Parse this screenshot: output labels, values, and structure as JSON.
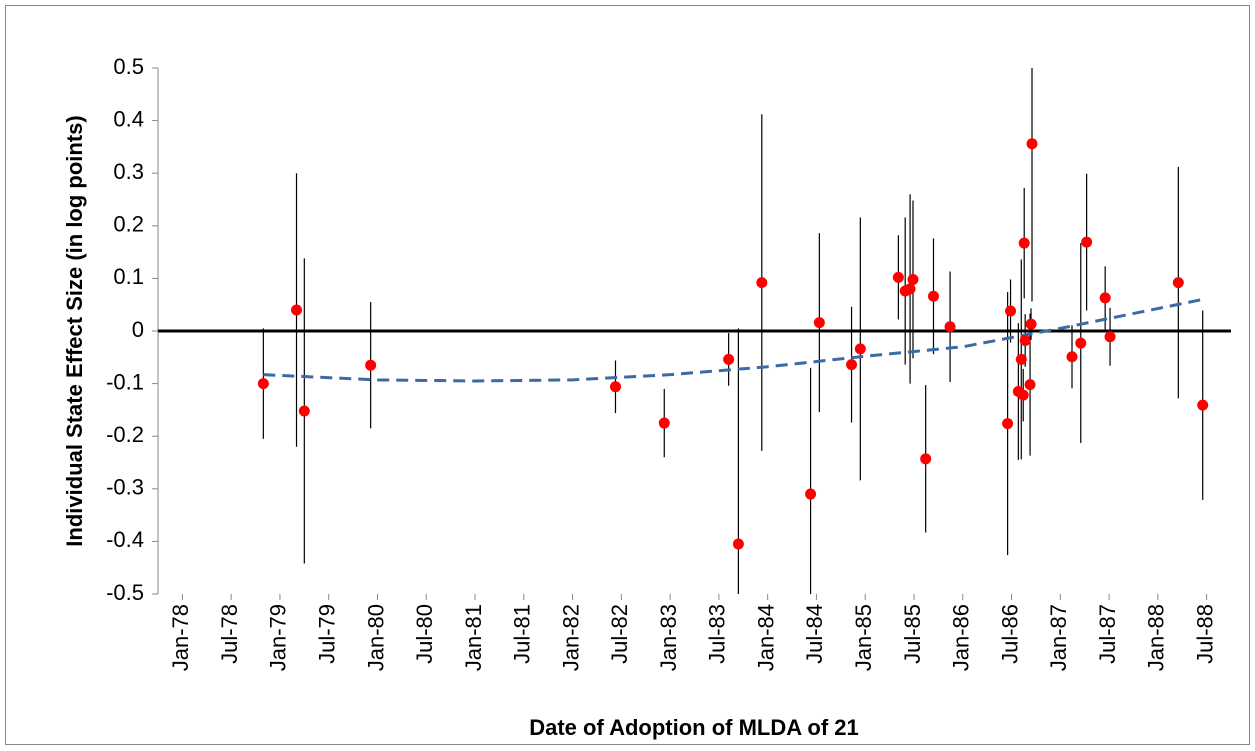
{
  "chart_data": {
    "type": "scatter",
    "x_label": "Date of Adoption of MLDA of 21",
    "y_label": "Individual State Effect Size (in log points)",
    "xlim": [
      1977.75,
      1988.75
    ],
    "xticks": [
      {
        "value": 1978.0,
        "label": "Jan-78"
      },
      {
        "value": 1978.5,
        "label": "Jul-78"
      },
      {
        "value": 1979.0,
        "label": "Jan-79"
      },
      {
        "value": 1979.5,
        "label": "Jul-79"
      },
      {
        "value": 1980.0,
        "label": "Jan-80"
      },
      {
        "value": 1980.5,
        "label": "Jul-80"
      },
      {
        "value": 1981.0,
        "label": "Jan-81"
      },
      {
        "value": 1981.5,
        "label": "Jul-81"
      },
      {
        "value": 1982.0,
        "label": "Jan-82"
      },
      {
        "value": 1982.5,
        "label": "Jul-82"
      },
      {
        "value": 1983.0,
        "label": "Jan-83"
      },
      {
        "value": 1983.5,
        "label": "Jul-83"
      },
      {
        "value": 1984.0,
        "label": "Jan-84"
      },
      {
        "value": 1984.5,
        "label": "Jul-84"
      },
      {
        "value": 1985.0,
        "label": "Jan-85"
      },
      {
        "value": 1985.5,
        "label": "Jul-85"
      },
      {
        "value": 1986.0,
        "label": "Jan-86"
      },
      {
        "value": 1986.5,
        "label": "Jul-86"
      },
      {
        "value": 1987.0,
        "label": "Jan-87"
      },
      {
        "value": 1987.5,
        "label": "Jul-87"
      },
      {
        "value": 1988.0,
        "label": "Jan-88"
      },
      {
        "value": 1988.5,
        "label": "Jul-88"
      }
    ],
    "ylim": [
      -0.5,
      0.5
    ],
    "yticks": [
      -0.5,
      -0.4,
      -0.3,
      -0.2,
      -0.1,
      0,
      0.1,
      0.2,
      0.3,
      0.4,
      0.5
    ],
    "grid": false,
    "series": [
      {
        "color": "#ff0000",
        "error_color": "#000000",
        "x": [
          1978.83,
          1979.17,
          1979.25,
          1979.93,
          1982.44,
          1982.94,
          1983.6,
          1983.7,
          1983.94,
          1984.44,
          1984.53,
          1984.86,
          1984.95,
          1985.34,
          1985.41,
          1985.46,
          1985.49,
          1985.62,
          1985.7,
          1985.87,
          1986.46,
          1986.49,
          1986.57,
          1986.6,
          1986.62,
          1986.63,
          1986.64,
          1986.69,
          1986.7,
          1986.71,
          1987.12,
          1987.21,
          1987.27,
          1987.46,
          1987.51,
          1988.21,
          1988.46
        ],
        "values": [
          -0.1,
          0.04,
          -0.152,
          -0.065,
          -0.106,
          -0.175,
          -0.054,
          -0.405,
          0.092,
          -0.31,
          0.016,
          -0.064,
          -0.034,
          0.102,
          0.076,
          0.08,
          0.098,
          -0.243,
          0.066,
          0.008,
          -0.176,
          0.038,
          -0.115,
          -0.054,
          -0.122,
          0.167,
          -0.018,
          -0.102,
          0.013,
          0.356,
          -0.049,
          -0.023,
          0.169,
          0.063,
          -0.011,
          0.092,
          -0.141
        ],
        "errors": [
          0.105,
          0.26,
          0.29,
          0.12,
          0.05,
          0.065,
          0.05,
          0.41,
          0.32,
          0.24,
          0.17,
          0.11,
          0.25,
          0.08,
          0.14,
          0.18,
          0.15,
          0.14,
          0.11,
          0.105,
          0.25,
          0.06,
          0.13,
          0.19,
          0.05,
          0.105,
          0.05,
          0.135,
          0.03,
          0.3,
          0.06,
          0.19,
          0.13,
          0.06,
          0.055,
          0.22,
          0.18
        ]
      }
    ],
    "trend": {
      "color": "#3c6aa5",
      "dashed": true,
      "x": [
        1978.83,
        1980.0,
        1981.0,
        1982.0,
        1983.0,
        1984.0,
        1985.0,
        1986.0,
        1987.0,
        1988.46
      ],
      "values": [
        -0.083,
        -0.093,
        -0.095,
        -0.093,
        -0.083,
        -0.068,
        -0.048,
        -0.03,
        0.005,
        0.06
      ]
    }
  }
}
